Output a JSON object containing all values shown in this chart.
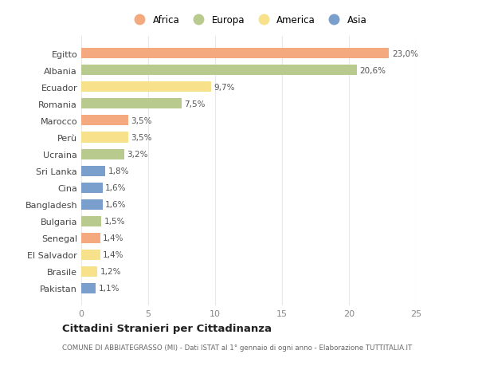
{
  "countries": [
    "Egitto",
    "Albania",
    "Ecuador",
    "Romania",
    "Marocco",
    "Perù",
    "Ucraina",
    "Sri Lanka",
    "Cina",
    "Bangladesh",
    "Bulgaria",
    "Senegal",
    "El Salvador",
    "Brasile",
    "Pakistan"
  ],
  "values": [
    23.0,
    20.6,
    9.7,
    7.5,
    3.5,
    3.5,
    3.2,
    1.8,
    1.6,
    1.6,
    1.5,
    1.4,
    1.4,
    1.2,
    1.1
  ],
  "labels": [
    "23,0%",
    "20,6%",
    "9,7%",
    "7,5%",
    "3,5%",
    "3,5%",
    "3,2%",
    "1,8%",
    "1,6%",
    "1,6%",
    "1,5%",
    "1,4%",
    "1,4%",
    "1,2%",
    "1,1%"
  ],
  "continents": [
    "Africa",
    "Europa",
    "America",
    "Europa",
    "Africa",
    "America",
    "Europa",
    "Asia",
    "Asia",
    "Asia",
    "Europa",
    "Africa",
    "America",
    "America",
    "Asia"
  ],
  "colors": {
    "Africa": "#F5A97F",
    "Europa": "#B8CA8E",
    "America": "#F7E18A",
    "Asia": "#7B9FCC"
  },
  "title": "Cittadini Stranieri per Cittadinanza",
  "subtitle": "COMUNE DI ABBIATEGRASSO (MI) - Dati ISTAT al 1° gennaio di ogni anno - Elaborazione TUTTITALIA.IT",
  "xlim": [
    0,
    25
  ],
  "xticks": [
    0,
    5,
    10,
    15,
    20,
    25
  ],
  "background_color": "#ffffff",
  "grid_color": "#e8e8e8"
}
